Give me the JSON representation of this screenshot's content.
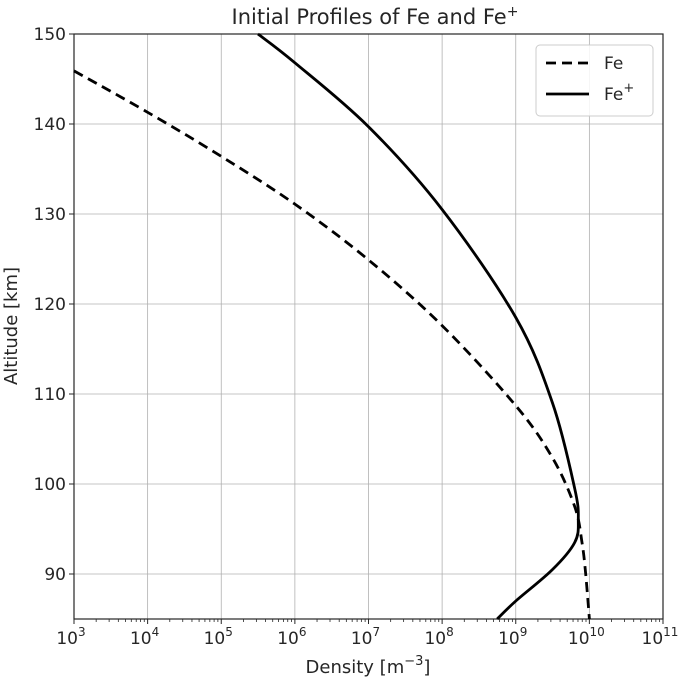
{
  "chart_data": {
    "type": "line",
    "title": "Initial Profiles of Fe and Fe",
    "title_sup": "+",
    "xlabel": "Density [m",
    "xlabel_sup": "−3",
    "xlabel_close": "]",
    "ylabel": "Altitude [km]",
    "x_scale": "log",
    "xlim": [
      1000,
      100000000000
    ],
    "ylim": [
      85,
      150
    ],
    "x_ticks": [
      {
        "base": "10",
        "exp": "3",
        "value": 1000
      },
      {
        "base": "10",
        "exp": "4",
        "value": 10000
      },
      {
        "base": "10",
        "exp": "5",
        "value": 100000
      },
      {
        "base": "10",
        "exp": "6",
        "value": 1000000
      },
      {
        "base": "10",
        "exp": "7",
        "value": 10000000
      },
      {
        "base": "10",
        "exp": "8",
        "value": 100000000
      },
      {
        "base": "10",
        "exp": "9",
        "value": 1000000000
      },
      {
        "base": "10",
        "exp": "10",
        "value": 10000000000
      },
      {
        "base": "10",
        "exp": "11",
        "value": 100000000000
      }
    ],
    "y_ticks": [
      90,
      100,
      110,
      120,
      130,
      140,
      150
    ],
    "grid": true,
    "legend_position": "top-right",
    "series": [
      {
        "name": "Fe",
        "sup": "",
        "style": "dashed",
        "color": "#000000",
        "points": [
          [
            1000,
            145.9
          ],
          [
            10000,
            141.3
          ],
          [
            100000,
            136.4
          ],
          [
            1000000,
            131.1
          ],
          [
            10000000,
            124.9
          ],
          [
            100000000,
            117.6
          ],
          [
            1000000000,
            108.7
          ],
          [
            3160000000,
            102.9
          ],
          [
            6310000000,
            97.5
          ],
          [
            7940000000,
            93.5
          ],
          [
            8910000000,
            90.0
          ],
          [
            10000000000,
            85.0
          ]
        ]
      },
      {
        "name": "Fe",
        "sup": "+",
        "style": "solid",
        "color": "#000000",
        "points": [
          [
            316000,
            150.0
          ],
          [
            1000000,
            146.8
          ],
          [
            10000000,
            139.7
          ],
          [
            100000000,
            130.5
          ],
          [
            1000000000,
            118.5
          ],
          [
            3160000000,
            109.0
          ],
          [
            6310000000,
            99.5
          ],
          [
            7080000000,
            96.0
          ],
          [
            6310000000,
            93.5
          ],
          [
            3160000000,
            90.5
          ],
          [
            1000000000,
            87.0
          ],
          [
            560000000,
            85.0
          ]
        ]
      }
    ]
  }
}
